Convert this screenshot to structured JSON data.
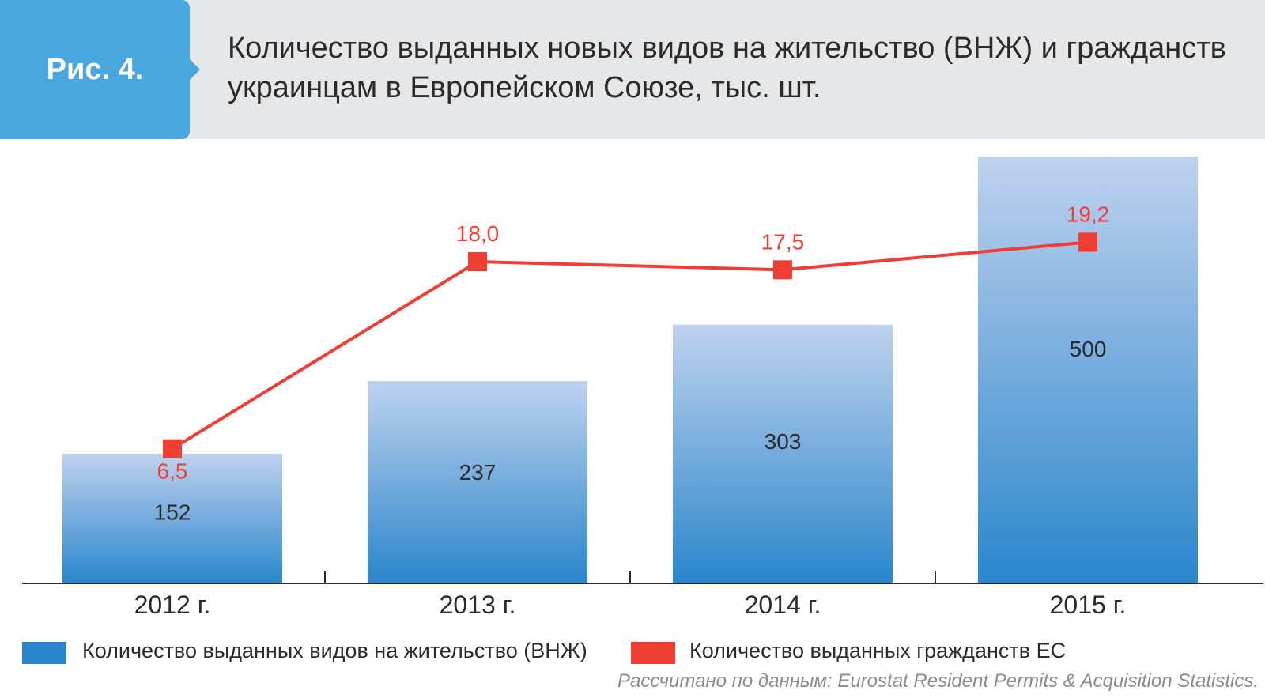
{
  "header": {
    "fig_label": "Рис. 4.",
    "title_line1": "Количество выданных новых видов на жительство (ВНЖ) и гражданств",
    "title_line2": "украинцам в Европейском Союзе, тыс. шт."
  },
  "chart_data": {
    "type": "bar",
    "categories": [
      "2012 г.",
      "2013 г.",
      "2014 г.",
      "2015 г."
    ],
    "series": [
      {
        "name": "Количество выданных видов на жительство (ВНЖ)",
        "type": "bar",
        "values": [
          152,
          237,
          303,
          500
        ],
        "labels": [
          "152",
          "237",
          "303",
          "500"
        ],
        "color": "#2a86cc"
      },
      {
        "name": "Количество выданных гражданств ЕС",
        "type": "line",
        "values": [
          6.5,
          18.0,
          17.5,
          19.2
        ],
        "labels": [
          "6,5",
          "18,0",
          "17,5",
          "19,2"
        ],
        "color": "#ef3e33"
      }
    ],
    "legend_position": "bottom",
    "grid": false
  },
  "legend": {
    "bars_label": "Количество выданных видов на жительство (ВНЖ)",
    "line_label": "Количество выданных гражданств ЕС"
  },
  "source": "Рассчитано по данным: Eurostat Resident Permits & Acquisition Statistics."
}
